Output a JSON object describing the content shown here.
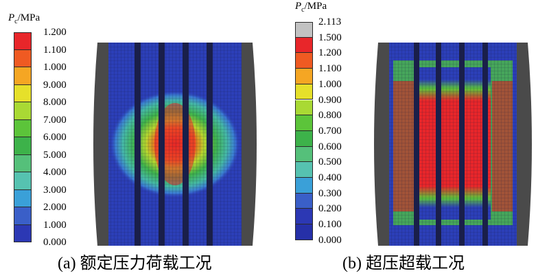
{
  "figure": {
    "panels": [
      {
        "id": "a",
        "unit_symbol": "P",
        "unit_sub": "c",
        "unit_rest": "/MPa",
        "caption": "(a) 额定压力荷载工况",
        "legend": [
          {
            "label": "1.200",
            "color": "#e8262a"
          },
          {
            "label": "1.100",
            "color": "#ef5a22"
          },
          {
            "label": "1.000",
            "color": "#f5a623"
          },
          {
            "label": "9.000",
            "color": "#e6e02a"
          },
          {
            "label": "8.000",
            "color": "#a9d934"
          },
          {
            "label": "7.000",
            "color": "#5cc43a"
          },
          {
            "label": "6.000",
            "color": "#3db24a"
          },
          {
            "label": "5.000",
            "color": "#55c07a"
          },
          {
            "label": "4.000",
            "color": "#56c2b0"
          },
          {
            "label": "3.000",
            "color": "#3aa0d8"
          },
          {
            "label": "2.000",
            "color": "#3a5fc8"
          },
          {
            "label": "1.000",
            "color": "#2c38b4"
          },
          {
            "label": "0.000",
            "color": null
          }
        ]
      },
      {
        "id": "b",
        "unit_symbol": "P",
        "unit_sub": "c",
        "unit_rest": "/MPa",
        "caption": "(b) 超压超载工况",
        "legend": [
          {
            "label": "2.113",
            "color": "#c2c2c2"
          },
          {
            "label": "1.500",
            "color": "#e8262a"
          },
          {
            "label": "1.200",
            "color": "#ef5a22"
          },
          {
            "label": "1.100",
            "color": "#f5a623"
          },
          {
            "label": "1.000",
            "color": "#e6e02a"
          },
          {
            "label": "0.900",
            "color": "#a9d934"
          },
          {
            "label": "0.800",
            "color": "#5cc43a"
          },
          {
            "label": "0.700",
            "color": "#3db24a"
          },
          {
            "label": "0.600",
            "color": "#55c07a"
          },
          {
            "label": "0.500",
            "color": "#56c2b0"
          },
          {
            "label": "0.400",
            "color": "#3aa0d8"
          },
          {
            "label": "0.300",
            "color": "#3a5fc8"
          },
          {
            "label": "0.200",
            "color": "#2c38b4"
          },
          {
            "label": "0.100",
            "color": "#2630a8"
          },
          {
            "label": "0.000",
            "color": null
          }
        ]
      }
    ]
  }
}
